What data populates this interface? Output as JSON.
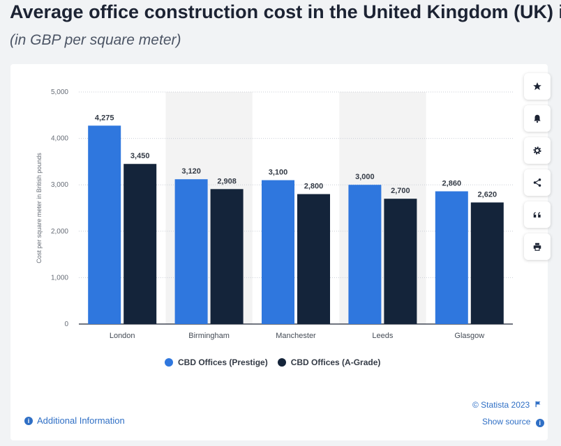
{
  "header": {
    "title": "Average office construction cost in the United Kingdom (UK) i",
    "subtitle": "(in GBP per square meter)"
  },
  "colors": {
    "prestige": "#2f77de",
    "agrade": "#14243a",
    "band": "#f3f3f3",
    "link": "#2f6fc5"
  },
  "sidebar": {
    "icons": [
      "star-icon",
      "bell-icon",
      "gear-icon",
      "share-icon",
      "quote-icon",
      "print-icon"
    ]
  },
  "chart_data": {
    "type": "bar",
    "categories": [
      "London",
      "Birmingham",
      "Manchester",
      "Leeds",
      "Glasgow"
    ],
    "series": [
      {
        "name": "CBD Offices (Prestige)",
        "values": [
          4275,
          3120,
          3100,
          3000,
          2860
        ],
        "labels": [
          "4,275",
          "3,120",
          "3,100",
          "3,000",
          "2,860"
        ]
      },
      {
        "name": "CBD Offices (A-Grade)",
        "values": [
          3450,
          2908,
          2800,
          2700,
          2620
        ],
        "labels": [
          "3,450",
          "2,908",
          "2,800",
          "2,700",
          "2,620"
        ]
      }
    ],
    "yticks": [
      0,
      1000,
      2000,
      3000,
      4000,
      5000
    ],
    "ytick_labels": [
      "0",
      "1,000",
      "2,000",
      "3,000",
      "4,000",
      "5,000"
    ],
    "ylim": [
      0,
      5000
    ],
    "ylabel": "Cost per square meter in British pounds",
    "xlabel": "",
    "grid": true,
    "legend_position": "bottom"
  },
  "footer": {
    "additional_info": "Additional Information",
    "copyright": "© Statista 2023",
    "show_source": "Show source"
  }
}
